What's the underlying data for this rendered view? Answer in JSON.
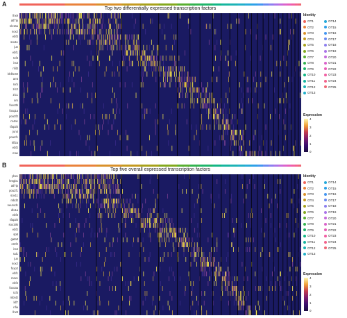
{
  "chart_data": [
    {
      "type": "heatmap",
      "panel": "A",
      "title": "Top two differentially expressed transcription factors",
      "genes": [
        "lhx9",
        "atf7ip",
        "slc16a",
        "sox2",
        "ebf3",
        "sox11",
        "jun",
        "ebf1",
        "tcf3",
        "irx3",
        "nfil3",
        "bhlhe40",
        "arnt",
        "rxrb",
        "zic2",
        "zic1",
        "arx",
        "foxo3b",
        "foxq1a",
        "pou3f2",
        "nr4a1",
        "tfap2b",
        "jun4",
        "pou4f1",
        "klf2a",
        "ebf2",
        "max"
      ],
      "clusters": [
        "OT1",
        "OT2",
        "OT3",
        "OT4",
        "OT5",
        "OT6",
        "OT7",
        "OT8",
        "OT9",
        "OT10",
        "OT11",
        "OT12",
        "OT13",
        "OT14",
        "OT15",
        "OT16",
        "OT17",
        "OT18",
        "OT19",
        "OT20",
        "OT21",
        "OT22",
        "OT23",
        "OT24",
        "OT25"
      ],
      "cluster_weights": [
        16,
        11,
        9,
        6.5,
        6.5,
        6.5,
        4.5,
        3.5,
        4.5,
        3,
        3,
        2.8,
        2.5,
        2.3,
        2.1,
        2,
        1.9,
        1.8,
        1.7,
        1.6,
        1.5,
        1.4,
        1.3,
        1.2,
        1
      ],
      "expression_scale": [
        0,
        1,
        2,
        3,
        4
      ],
      "legend": {
        "title": "Identity",
        "expression_title": "Expression",
        "expression_ticks": [
          "4",
          "3",
          "2",
          "1",
          "0"
        ]
      }
    },
    {
      "type": "heatmap",
      "panel": "B",
      "title": "Top five overall expressed transcription factors",
      "genes": [
        "ybx1",
        "hmgb1",
        "atf7ip",
        "pou2f1",
        "sox11",
        "mbd2",
        "neurod1",
        "dlx1a",
        "ebf3",
        "tfap2b",
        "sox19b",
        "ebf2",
        "sp8",
        "gata3",
        "nr2f2",
        "irx4",
        "tal1",
        "jun",
        "sox2",
        "foxp2",
        "ebf1",
        "msx1",
        "ebf4",
        "foxo3a",
        "tcf4",
        "mbnl2",
        "klf7",
        "nfia",
        "lhx9"
      ],
      "clusters": [
        "OT1",
        "OT2",
        "OT3",
        "OT4",
        "OT5",
        "OT6",
        "OT7",
        "OT8",
        "OT9",
        "OT10",
        "OT11",
        "OT12",
        "OT13",
        "OT14",
        "OT15",
        "OT16",
        "OT17",
        "OT18",
        "OT19",
        "OT20",
        "OT21",
        "OT22",
        "OT23",
        "OT24",
        "OT25"
      ],
      "cluster_weights": [
        16,
        11,
        9,
        6.5,
        6.5,
        6.5,
        4.5,
        3.5,
        4.5,
        3,
        3,
        2.8,
        2.5,
        2.3,
        2.1,
        2,
        1.9,
        1.8,
        1.7,
        1.6,
        1.5,
        1.4,
        1.3,
        1.2,
        1
      ],
      "expression_scale": [
        0,
        1,
        2,
        3,
        4
      ],
      "legend": {
        "title": "Identity",
        "expression_title": "Expression",
        "expression_ticks": [
          "4",
          "3",
          "2",
          "1",
          "0"
        ]
      }
    }
  ],
  "panels": {
    "a": {
      "letter": "A",
      "title": "Top two differentially expressed transcription factors"
    },
    "b": {
      "letter": "B",
      "title": "Top five overall expressed transcription factors"
    }
  },
  "legend": {
    "identity_title": "Identity",
    "expression_title": "Expression",
    "expression_ticks": [
      "4",
      "3",
      "2",
      "1",
      "0"
    ]
  },
  "cluster_colors": [
    "#f0645a",
    "#e9823b",
    "#d9912b",
    "#c49a20",
    "#a8a21c",
    "#84a91e",
    "#5aaf32",
    "#33b350",
    "#1fb56b",
    "#12b686",
    "#16b59f",
    "#1db3b5",
    "#21afc9",
    "#26a9da",
    "#2ea0e8",
    "#4496f0",
    "#6a8bf2",
    "#8d80ef",
    "#ab75e8",
    "#c56cdc",
    "#da64cb",
    "#e85fb8",
    "#f05fa3",
    "#f2638c",
    "#ef6875"
  ],
  "expression_colors": [
    "#1a1a62",
    "#3b2b8c",
    "#7a3f91",
    "#c9a23d",
    "#f3e54e"
  ]
}
